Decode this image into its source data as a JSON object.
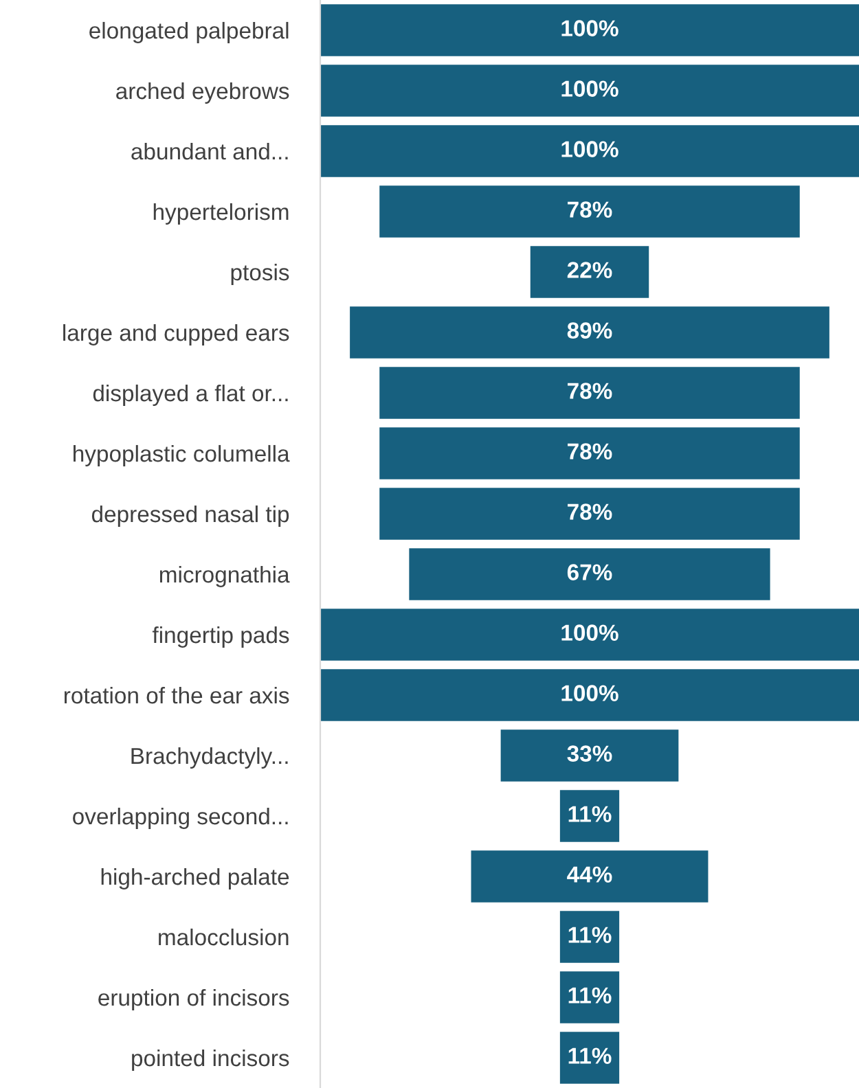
{
  "chart_data": {
    "type": "other",
    "categories": [
      "elongated palpebral",
      "arched eyebrows",
      "abundant and...",
      "hypertelorism",
      "ptosis",
      "large and cupped ears",
      "displayed a flat or...",
      "hypoplastic columella",
      "depressed nasal tip",
      "micrognathia",
      "fingertip pads",
      "rotation of the ear axis",
      "Brachydactyly...",
      "overlapping second...",
      "high-arched palate",
      "malocclusion",
      "eruption of incisors",
      "pointed incisors"
    ],
    "values": [
      100,
      100,
      100,
      78,
      22,
      89,
      78,
      78,
      78,
      67,
      100,
      100,
      33,
      11,
      44,
      11,
      11,
      11
    ],
    "value_labels": [
      "100%",
      "100%",
      "100%",
      "78%",
      "22%",
      "89%",
      "78%",
      "78%",
      "78%",
      "67%",
      "100%",
      "100%",
      "33%",
      "11%",
      "44%",
      "11%",
      "11%",
      "11%"
    ],
    "color": "#17607f"
  }
}
